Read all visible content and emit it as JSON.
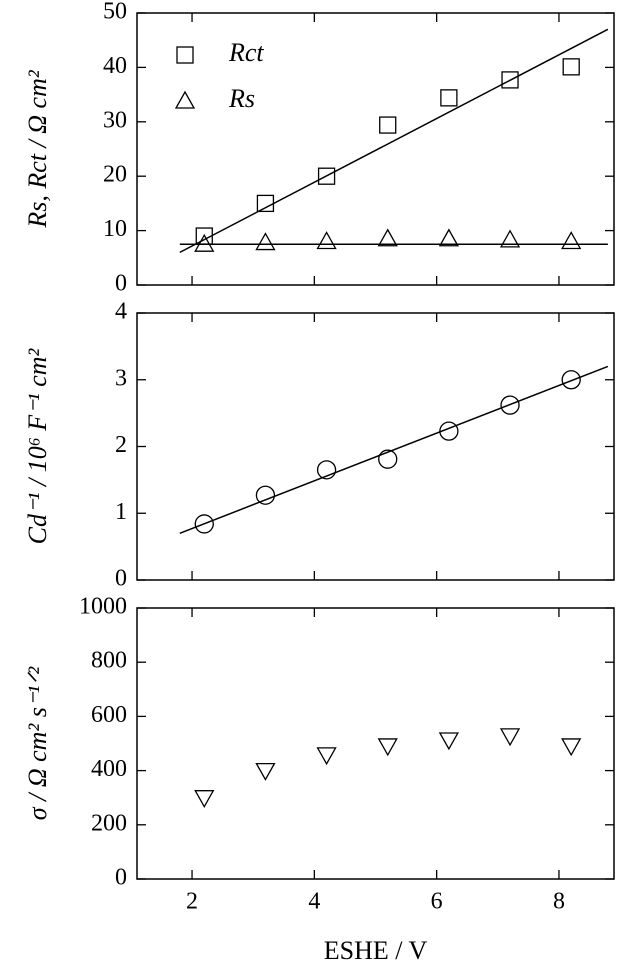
{
  "chart_data": [
    {
      "type": "scatter",
      "ylabel": "Rs, Rct / Ω cm²",
      "legend": "upper left",
      "xlim": [
        1.1,
        8.9
      ],
      "xticks": [
        2,
        4,
        6,
        8
      ],
      "ylim": [
        0,
        50
      ],
      "yticks": [
        0,
        10,
        20,
        30,
        40,
        50
      ],
      "series": [
        {
          "name": "Rct",
          "color": "#000000",
          "marker": "square",
          "x": [
            2.2,
            3.2,
            4.2,
            5.2,
            6.2,
            7.2,
            8.2
          ],
          "values": [
            9.0,
            15.0,
            20.0,
            29.4,
            34.4,
            37.7,
            40.1
          ]
        },
        {
          "name": "Rs",
          "color": "#000000",
          "marker": "triangle-up",
          "x": [
            2.2,
            3.2,
            4.2,
            5.2,
            6.2,
            7.2,
            8.2
          ],
          "values": [
            7.5,
            7.8,
            8.0,
            8.5,
            8.5,
            8.3,
            8.0
          ]
        }
      ],
      "fits": [
        {
          "x": [
            1.8,
            8.8
          ],
          "values": [
            6,
            47
          ]
        },
        {
          "x": [
            1.8,
            8.8
          ],
          "values": [
            7.5,
            7.5
          ]
        }
      ]
    },
    {
      "type": "scatter",
      "ylabel": "Cd⁻¹ / 10⁶ F⁻¹ cm²",
      "xlim": [
        1.1,
        8.9
      ],
      "xticks": [
        2,
        4,
        6,
        8
      ],
      "ylim": [
        0,
        4
      ],
      "yticks": [
        0,
        1,
        2,
        3,
        4
      ],
      "series": [
        {
          "color": "#000000",
          "marker": "circle",
          "x": [
            2.2,
            3.2,
            4.2,
            5.2,
            6.2,
            7.2,
            8.2
          ],
          "values": [
            0.84,
            1.27,
            1.65,
            1.81,
            2.23,
            2.62,
            3.0
          ]
        }
      ],
      "fits": [
        {
          "x": [
            1.8,
            8.8
          ],
          "values": [
            0.7,
            3.2
          ]
        }
      ]
    },
    {
      "type": "scatter",
      "ylabel": "σ / Ω cm² s⁻¹ᐟ²",
      "xlabel": "ESHE / V",
      "xlim": [
        1.1,
        8.9
      ],
      "xticks": [
        2,
        4,
        6,
        8
      ],
      "ylim": [
        0,
        1000
      ],
      "yticks": [
        0,
        200,
        400,
        600,
        800,
        1000
      ],
      "series": [
        {
          "color": "#000000",
          "marker": "triangle-down",
          "x": [
            2.2,
            3.2,
            4.2,
            5.2,
            6.2,
            7.2,
            8.2
          ],
          "values": [
            300,
            400,
            458,
            491,
            513,
            528,
            491
          ]
        }
      ]
    }
  ]
}
